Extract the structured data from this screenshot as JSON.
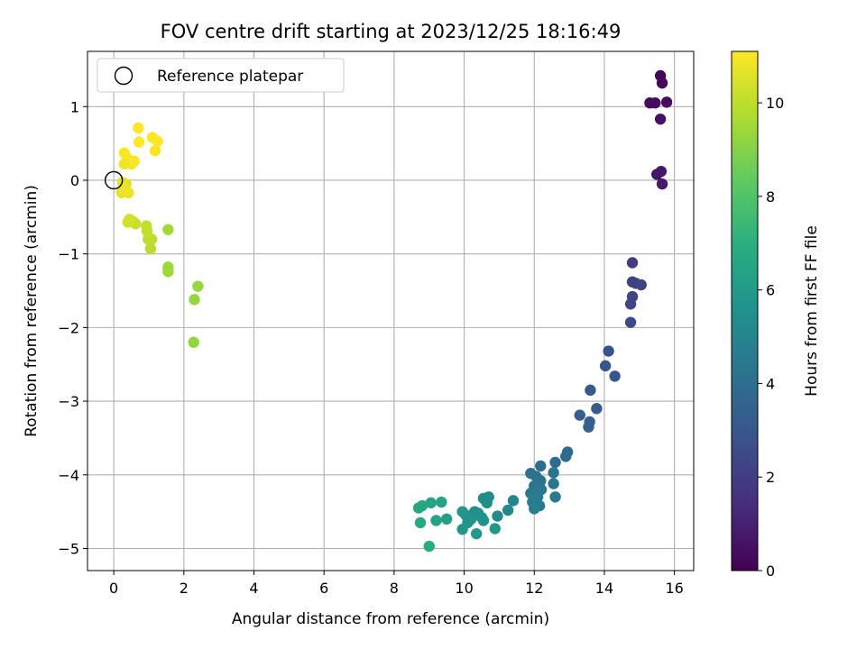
{
  "chart_data": {
    "type": "scatter",
    "title": "FOV centre drift starting at 2023/12/25 18:16:49",
    "xlabel": "Angular distance from reference (arcmin)",
    "ylabel": "Rotation from reference (arcmin)",
    "xlim": [
      -0.75,
      16.55
    ],
    "ylim": [
      -5.3,
      1.75
    ],
    "xticks": [
      0,
      2,
      4,
      6,
      8,
      10,
      12,
      14,
      16
    ],
    "yticks": [
      1,
      0,
      -1,
      -2,
      -3,
      -4,
      -5
    ],
    "ytick_labels": [
      "1",
      "0",
      "−1",
      "−2",
      "−3",
      "−4",
      "−5"
    ],
    "grid": true,
    "legend": {
      "position": "top-left",
      "entries": [
        {
          "label": "Reference platepar",
          "marker": "open-circle",
          "color": "#000000"
        }
      ]
    },
    "reference_point": {
      "x": 0,
      "y": 0
    },
    "colorbar": {
      "label": "Hours from first FF file",
      "range": [
        0,
        11.1
      ],
      "ticks": [
        0,
        2,
        4,
        6,
        8,
        10
      ],
      "colormap": "viridis"
    },
    "series": [
      {
        "color_by": "hours",
        "points": [
          {
            "x": 15.6,
            "y": 1.42,
            "c": 0.1
          },
          {
            "x": 15.65,
            "y": 1.32,
            "c": 0.2
          },
          {
            "x": 15.3,
            "y": 1.05,
            "c": 0.3
          },
          {
            "x": 15.45,
            "y": 1.05,
            "c": 0.35
          },
          {
            "x": 15.78,
            "y": 1.06,
            "c": 0.4
          },
          {
            "x": 15.6,
            "y": 0.83,
            "c": 0.5
          },
          {
            "x": 15.5,
            "y": 0.08,
            "c": 0.6
          },
          {
            "x": 15.62,
            "y": 0.12,
            "c": 0.7
          },
          {
            "x": 15.65,
            "y": -0.05,
            "c": 0.8
          },
          {
            "x": 14.8,
            "y": -1.12,
            "c": 2.0
          },
          {
            "x": 14.8,
            "y": -1.38,
            "c": 2.1
          },
          {
            "x": 14.9,
            "y": -1.4,
            "c": 2.15
          },
          {
            "x": 15.05,
            "y": -1.42,
            "c": 2.2
          },
          {
            "x": 14.8,
            "y": -1.58,
            "c": 2.25
          },
          {
            "x": 14.75,
            "y": -1.68,
            "c": 2.3
          },
          {
            "x": 14.75,
            "y": -1.93,
            "c": 2.4
          },
          {
            "x": 14.12,
            "y": -2.32,
            "c": 2.8
          },
          {
            "x": 14.03,
            "y": -2.52,
            "c": 2.9
          },
          {
            "x": 14.3,
            "y": -2.66,
            "c": 3.0
          },
          {
            "x": 13.6,
            "y": -2.85,
            "c": 3.1
          },
          {
            "x": 13.78,
            "y": -3.1,
            "c": 3.2
          },
          {
            "x": 13.3,
            "y": -3.19,
            "c": 3.3
          },
          {
            "x": 13.58,
            "y": -3.28,
            "c": 3.4
          },
          {
            "x": 13.55,
            "y": -3.35,
            "c": 3.45
          },
          {
            "x": 12.95,
            "y": -3.69,
            "c": 3.8
          },
          {
            "x": 12.9,
            "y": -3.75,
            "c": 3.85
          },
          {
            "x": 12.6,
            "y": -3.83,
            "c": 3.9
          },
          {
            "x": 12.18,
            "y": -3.88,
            "c": 4.0
          },
          {
            "x": 11.9,
            "y": -3.98,
            "c": 4.1
          },
          {
            "x": 12.05,
            "y": -4.02,
            "c": 4.15
          },
          {
            "x": 12.55,
            "y": -3.97,
            "c": 4.2
          },
          {
            "x": 12.18,
            "y": -4.08,
            "c": 4.25
          },
          {
            "x": 12.55,
            "y": -4.12,
            "c": 4.3
          },
          {
            "x": 12.0,
            "y": -4.15,
            "c": 4.35
          },
          {
            "x": 12.2,
            "y": -4.2,
            "c": 4.4
          },
          {
            "x": 11.9,
            "y": -4.25,
            "c": 4.45
          },
          {
            "x": 12.6,
            "y": -4.3,
            "c": 4.5
          },
          {
            "x": 12.1,
            "y": -4.3,
            "c": 4.55
          },
          {
            "x": 11.95,
            "y": -4.37,
            "c": 4.6
          },
          {
            "x": 12.15,
            "y": -4.42,
            "c": 4.65
          },
          {
            "x": 12.0,
            "y": -4.46,
            "c": 4.7
          },
          {
            "x": 11.4,
            "y": -4.35,
            "c": 5.0
          },
          {
            "x": 11.25,
            "y": -4.48,
            "c": 5.1
          },
          {
            "x": 10.95,
            "y": -4.56,
            "c": 5.2
          },
          {
            "x": 10.7,
            "y": -4.3,
            "c": 5.3
          },
          {
            "x": 10.55,
            "y": -4.32,
            "c": 5.35
          },
          {
            "x": 10.65,
            "y": -4.38,
            "c": 5.4
          },
          {
            "x": 10.4,
            "y": -4.52,
            "c": 5.45
          },
          {
            "x": 10.3,
            "y": -4.5,
            "c": 5.5
          },
          {
            "x": 10.55,
            "y": -4.62,
            "c": 5.55
          },
          {
            "x": 10.5,
            "y": -4.58,
            "c": 5.6
          },
          {
            "x": 10.2,
            "y": -4.6,
            "c": 5.65
          },
          {
            "x": 10.05,
            "y": -4.55,
            "c": 5.7
          },
          {
            "x": 10.1,
            "y": -4.65,
            "c": 5.75
          },
          {
            "x": 9.95,
            "y": -4.5,
            "c": 5.8
          },
          {
            "x": 9.95,
            "y": -4.74,
            "c": 5.85
          },
          {
            "x": 10.88,
            "y": -4.73,
            "c": 5.9
          },
          {
            "x": 10.35,
            "y": -4.8,
            "c": 5.95
          },
          {
            "x": 9.5,
            "y": -4.6,
            "c": 6.2
          },
          {
            "x": 9.2,
            "y": -4.62,
            "c": 6.3
          },
          {
            "x": 9.35,
            "y": -4.37,
            "c": 6.4
          },
          {
            "x": 9.05,
            "y": -4.38,
            "c": 6.5
          },
          {
            "x": 8.8,
            "y": -4.42,
            "c": 6.55
          },
          {
            "x": 8.7,
            "y": -4.45,
            "c": 6.6
          },
          {
            "x": 8.75,
            "y": -4.65,
            "c": 6.7
          },
          {
            "x": 9.0,
            "y": -4.97,
            "c": 6.8
          },
          {
            "x": 2.28,
            "y": -2.2,
            "c": 9.2
          },
          {
            "x": 2.3,
            "y": -1.62,
            "c": 9.25
          },
          {
            "x": 2.4,
            "y": -1.44,
            "c": 9.3
          },
          {
            "x": 1.55,
            "y": -1.18,
            "c": 9.4
          },
          {
            "x": 1.55,
            "y": -1.24,
            "c": 9.45
          },
          {
            "x": 1.55,
            "y": -0.67,
            "c": 9.5
          },
          {
            "x": 1.05,
            "y": -0.93,
            "c": 9.9
          },
          {
            "x": 1.08,
            "y": -0.8,
            "c": 9.95
          },
          {
            "x": 0.98,
            "y": -0.8,
            "c": 10.0
          },
          {
            "x": 0.95,
            "y": -0.69,
            "c": 10.05
          },
          {
            "x": 0.93,
            "y": -0.62,
            "c": 10.1
          },
          {
            "x": 0.62,
            "y": -0.59,
            "c": 10.15
          },
          {
            "x": 0.55,
            "y": -0.56,
            "c": 10.2
          },
          {
            "x": 0.45,
            "y": -0.53,
            "c": 10.25
          },
          {
            "x": 0.43,
            "y": -0.55,
            "c": 10.3
          },
          {
            "x": 0.4,
            "y": -0.57,
            "c": 10.35
          },
          {
            "x": 0.35,
            "y": -0.05,
            "c": 10.6
          },
          {
            "x": 0.25,
            "y": -0.03,
            "c": 10.65
          },
          {
            "x": 0.22,
            "y": -0.17,
            "c": 10.7
          },
          {
            "x": 0.33,
            "y": -0.15,
            "c": 10.75
          },
          {
            "x": 0.42,
            "y": -0.17,
            "c": 10.8
          },
          {
            "x": 0.3,
            "y": 0.22,
            "c": 10.85
          },
          {
            "x": 0.5,
            "y": 0.22,
            "c": 10.9
          },
          {
            "x": 0.38,
            "y": 0.3,
            "c": 10.95
          },
          {
            "x": 0.58,
            "y": 0.26,
            "c": 11.0
          },
          {
            "x": 0.3,
            "y": 0.37,
            "c": 11.0
          },
          {
            "x": 1.18,
            "y": 0.4,
            "c": 11.0
          },
          {
            "x": 0.72,
            "y": 0.52,
            "c": 11.05
          },
          {
            "x": 1.1,
            "y": 0.58,
            "c": 11.05
          },
          {
            "x": 1.25,
            "y": 0.53,
            "c": 11.1
          },
          {
            "x": 0.7,
            "y": 0.71,
            "c": 11.1
          }
        ]
      }
    ]
  }
}
